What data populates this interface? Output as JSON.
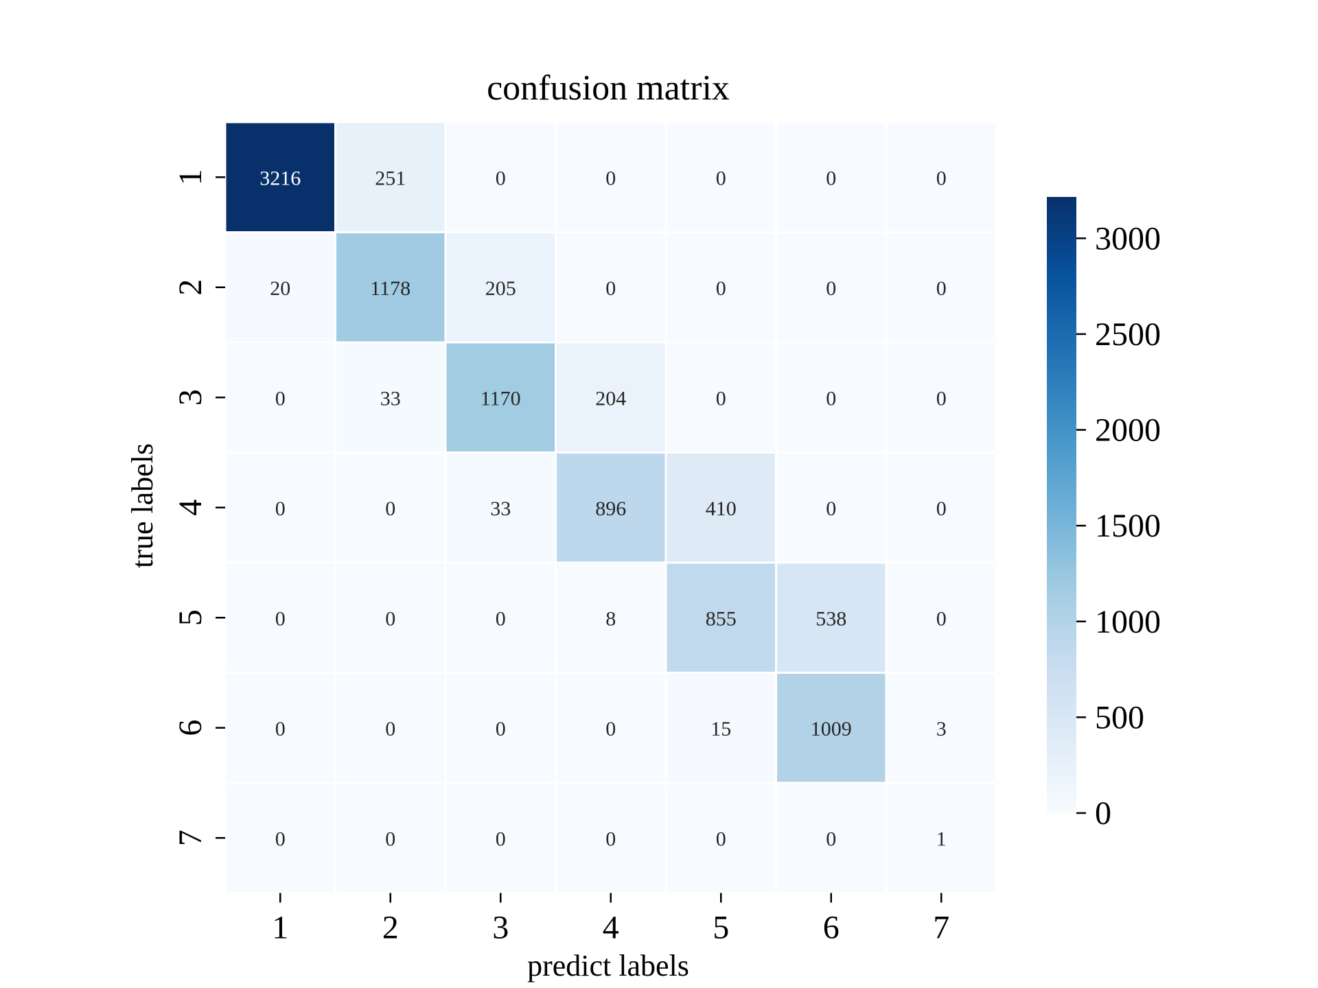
{
  "chart_data": {
    "type": "heatmap",
    "title": "confusion matrix",
    "xlabel": "predict labels",
    "ylabel": "true labels",
    "x_categories": [
      "1",
      "2",
      "3",
      "4",
      "5",
      "6",
      "7"
    ],
    "y_categories": [
      "1",
      "2",
      "3",
      "4",
      "5",
      "6",
      "7"
    ],
    "values": [
      [
        3216,
        251,
        0,
        0,
        0,
        0,
        0
      ],
      [
        20,
        1178,
        205,
        0,
        0,
        0,
        0
      ],
      [
        0,
        33,
        1170,
        204,
        0,
        0,
        0
      ],
      [
        0,
        0,
        33,
        896,
        410,
        0,
        0
      ],
      [
        0,
        0,
        0,
        8,
        855,
        538,
        0
      ],
      [
        0,
        0,
        0,
        0,
        15,
        1009,
        3
      ],
      [
        0,
        0,
        0,
        0,
        0,
        0,
        1
      ]
    ],
    "colormap": "Blues",
    "colorbar": {
      "min": 0,
      "max": 3216,
      "ticks": [
        0,
        500,
        1000,
        1500,
        2000,
        2500,
        3000
      ],
      "tick_labels": [
        "0",
        "500",
        "1000",
        "1500",
        "2000",
        "2500",
        "3000"
      ]
    },
    "cell_separator_color": "#ffffff",
    "annotation_text_dark": "#262626",
    "annotation_text_light": "#ffffff"
  }
}
